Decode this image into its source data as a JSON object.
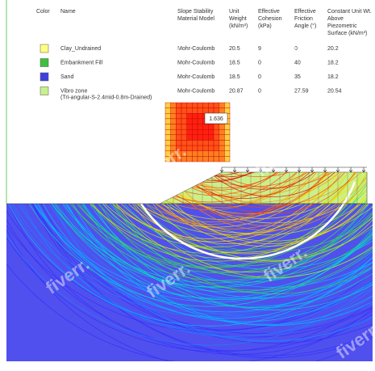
{
  "legend": {
    "headers": [
      [
        "Color"
      ],
      [
        "Name"
      ],
      [
        "Slope Stability",
        "Material Model"
      ],
      [
        "Unit",
        "Weight",
        "(kN/m³)"
      ],
      [
        "Effective",
        "Cohesion",
        "(kPa)"
      ],
      [
        "Effective",
        "Friction",
        "Angle (°)"
      ],
      [
        "Constant Unit Wt.",
        "Above",
        "Piezometric",
        "Surface (kN/m³)"
      ]
    ],
    "rows": [
      {
        "color": "#ffff80",
        "name": [
          "Clay_Undrained"
        ],
        "model": "Mohr-Coulomb",
        "unit_weight": 20.5,
        "cohesion": 9,
        "friction": 0,
        "unit_wt_above": 20.2
      },
      {
        "color": "#40c040",
        "name": [
          "Embankment Fill"
        ],
        "model": "Mohr-Coulomb",
        "unit_weight": 18.5,
        "cohesion": 0,
        "friction": 40,
        "unit_wt_above": 18.2
      },
      {
        "color": "#4040e0",
        "name": [
          "Sand"
        ],
        "model": "Mohr-Coulomb",
        "unit_weight": 18.5,
        "cohesion": 0,
        "friction": 35,
        "unit_wt_above": 18.2
      },
      {
        "color": "#c8f08c",
        "name": [
          "Vibro zone",
          "(Tri-angular-S-2.4mid-0.8m-Drained)"
        ],
        "model": "Mohr-Coulomb",
        "unit_weight": 20.87,
        "cohesion": 0,
        "friction": 27.59,
        "unit_wt_above": 20.54
      }
    ]
  },
  "factor_of_safety": "1.636",
  "watermark": "fiverr."
}
